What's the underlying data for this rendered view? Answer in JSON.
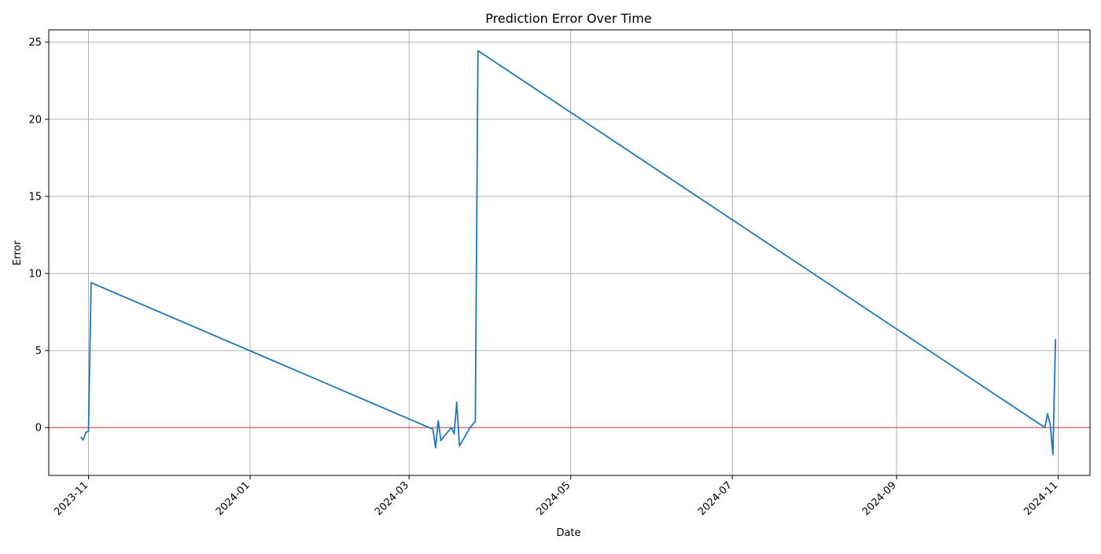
{
  "chart_data": {
    "type": "line",
    "title": "Prediction Error Over Time",
    "xlabel": "Date",
    "ylabel": "Error",
    "x_axis_type": "date",
    "xlim": [
      "2023-10-17",
      "2024-11-13"
    ],
    "ylim": [
      -3.1,
      25.8
    ],
    "x_ticks": [
      "2023-11",
      "2024-01",
      "2024-03",
      "2024-05",
      "2024-07",
      "2024-09",
      "2024-11"
    ],
    "y_ticks": [
      0,
      5,
      10,
      15,
      20,
      25
    ],
    "grid": true,
    "legend": "none",
    "reference_line": {
      "y": 0,
      "color": "#d62728"
    },
    "series": [
      {
        "color": "#1f77b4",
        "points": [
          {
            "x": "2023-10-29",
            "y": -0.6
          },
          {
            "x": "2023-10-30",
            "y": -0.8
          },
          {
            "x": "2023-10-31",
            "y": -0.3
          },
          {
            "x": "2023-11-01",
            "y": -0.25
          },
          {
            "x": "2023-11-02",
            "y": 9.4
          },
          {
            "x": "2024-03-10",
            "y": -0.1
          },
          {
            "x": "2024-03-11",
            "y": -1.3
          },
          {
            "x": "2024-03-12",
            "y": 0.45
          },
          {
            "x": "2024-03-13",
            "y": -0.85
          },
          {
            "x": "2024-03-14",
            "y": -0.6
          },
          {
            "x": "2024-03-17",
            "y": 0.0
          },
          {
            "x": "2024-03-18",
            "y": -0.4
          },
          {
            "x": "2024-03-19",
            "y": 1.65
          },
          {
            "x": "2024-03-20",
            "y": -1.2
          },
          {
            "x": "2024-03-24",
            "y": 0.0
          },
          {
            "x": "2024-03-26",
            "y": 0.4
          },
          {
            "x": "2024-03-27",
            "y": 24.45
          },
          {
            "x": "2024-10-27",
            "y": 0.0
          },
          {
            "x": "2024-10-28",
            "y": 0.9
          },
          {
            "x": "2024-10-29",
            "y": 0.2
          },
          {
            "x": "2024-10-30",
            "y": -1.75
          },
          {
            "x": "2024-10-31",
            "y": 5.75
          }
        ]
      }
    ]
  }
}
